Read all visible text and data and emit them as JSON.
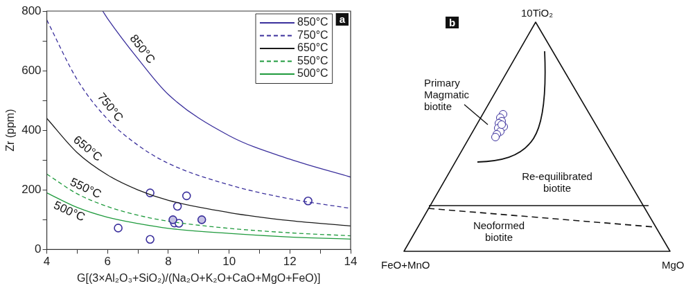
{
  "chart_data": [
    {
      "type": "line",
      "xlabel": "G[(3×Al₂O₃+SiO₂)/(Na₂O+K₂O+CaO+MgO+FeO)]",
      "ylabel": "Zr (ppm)",
      "xlim": [
        4,
        14
      ],
      "xticks": [
        4,
        {
          "value": 5,
          "label": null
        },
        6,
        {
          "value": 7,
          "label": null
        },
        8,
        {
          "value": 9,
          "label": null
        },
        10,
        {
          "value": 11,
          "label": null
        },
        12,
        {
          "value": 13,
          "label": null
        },
        14
      ],
      "ylim": [
        0,
        800
      ],
      "yticks": [
        0,
        {
          "value": 100,
          "label": null
        },
        200,
        {
          "value": 300,
          "label": null
        },
        400,
        {
          "value": 500,
          "label": null
        },
        600,
        {
          "value": 700,
          "label": null
        },
        800
      ],
      "grid": false,
      "legend": "top right",
      "marker": "none",
      "series": [
        {
          "name": "850°C",
          "type": "line",
          "color": "#3a2f9c",
          "line_style": "solid",
          "x": [
            5.84,
            6,
            7,
            8,
            10,
            12,
            14
          ],
          "values": [
            800,
            775,
            640,
            520,
            382,
            303,
            243
          ]
        },
        {
          "name": "750°C",
          "type": "line",
          "color": "#3a2f9c",
          "line_style": "dashed",
          "x": [
            4,
            5,
            6,
            7,
            8,
            10,
            12,
            14
          ],
          "values": [
            770,
            570,
            437,
            350,
            289,
            217,
            170,
            138
          ]
        },
        {
          "name": "650°C",
          "type": "line",
          "color": "#1a1a1a",
          "line_style": "solid",
          "x": [
            4,
            5,
            6,
            7,
            8,
            10,
            12,
            14
          ],
          "values": [
            440,
            325,
            250,
            200,
            165,
            124,
            97,
            79
          ]
        },
        {
          "name": "550°C",
          "type": "line",
          "color": "#1e9a3c",
          "line_style": "dashed",
          "x": [
            4,
            5,
            6,
            7,
            8,
            10,
            12,
            14
          ],
          "values": [
            253,
            187,
            144,
            115,
            95,
            71,
            56,
            46
          ]
        },
        {
          "name": "500°C",
          "type": "line",
          "color": "#1e9a3c",
          "line_style": "solid",
          "x": [
            4,
            5,
            6,
            7,
            8,
            10,
            12,
            14
          ],
          "values": [
            190,
            141,
            108,
            87,
            71,
            54,
            42,
            35
          ]
        },
        {
          "type": "scatter",
          "marker": "circle",
          "color": "#3a2f9c",
          "x": [
            7.4,
            8.6,
            8.3,
            12.6,
            6.35,
            7.4,
            8.2,
            8.35
          ],
          "values": [
            190,
            180,
            145,
            163,
            72,
            34,
            89,
            88
          ]
        },
        {
          "type": "scatter",
          "marker": "circle",
          "color": "#c5c1e3",
          "x": [
            8.15,
            9.1
          ],
          "values": [
            100,
            100
          ]
        }
      ],
      "annotations": [
        "a",
        {
          "text": "850°C",
          "x": 6.9,
          "y": 653
        },
        {
          "text": "750°C",
          "x": 5.85,
          "y": 457
        },
        {
          "text": "650°C",
          "x": 5.15,
          "y": 314
        },
        {
          "text": "550°C",
          "x": 5.15,
          "y": 177
        },
        {
          "text": "500°C",
          "x": 4.84,
          "y": 150
        }
      ]
    },
    {
      "type": "other",
      "annotations": [
        "b",
        "10TiO₂",
        "FeO+MnO",
        "MgO",
        "Primary Magmatic biotite",
        "Re-equilibrated biotite",
        "Neoformed biotite"
      ]
    }
  ]
}
